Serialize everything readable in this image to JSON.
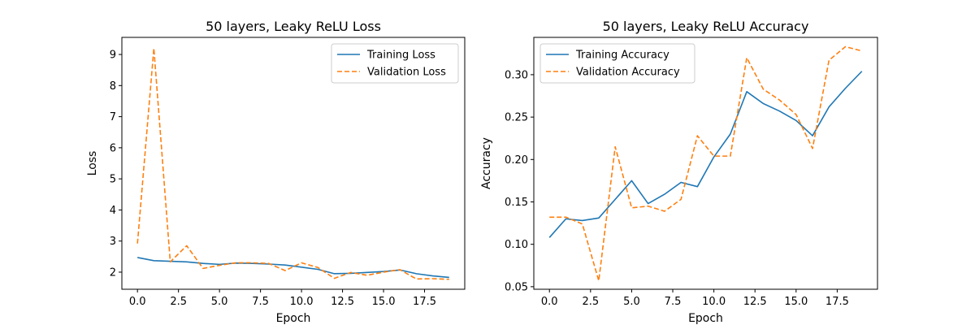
{
  "chart_data": [
    {
      "type": "line",
      "title": "50 layers, Leaky ReLU Loss",
      "xlabel": "Epoch",
      "ylabel": "Loss",
      "xlim": [
        -0.95,
        19.95
      ],
      "ylim": [
        1.45,
        9.55
      ],
      "xticks": [
        0.0,
        2.5,
        5.0,
        7.5,
        10.0,
        12.5,
        15.0,
        17.5
      ],
      "xtick_labels": [
        "0.0",
        "2.5",
        "5.0",
        "7.5",
        "10.0",
        "12.5",
        "15.0",
        "17.5"
      ],
      "yticks": [
        2,
        3,
        4,
        5,
        6,
        7,
        8,
        9
      ],
      "ytick_labels": [
        "2",
        "3",
        "4",
        "5",
        "6",
        "7",
        "8",
        "9"
      ],
      "grid": false,
      "legend_position": "top-right",
      "x": [
        0,
        1,
        2,
        3,
        4,
        5,
        6,
        7,
        8,
        9,
        10,
        11,
        12,
        13,
        14,
        15,
        16,
        17,
        18,
        19
      ],
      "series": [
        {
          "name": "Training Loss",
          "color": "#1f77b4",
          "style": "solid",
          "values": [
            2.47,
            2.37,
            2.35,
            2.33,
            2.28,
            2.25,
            2.29,
            2.28,
            2.26,
            2.23,
            2.16,
            2.09,
            1.95,
            1.96,
            1.99,
            2.02,
            2.07,
            1.95,
            1.88,
            1.83
          ]
        },
        {
          "name": "Validation Loss",
          "color": "#ff7f0e",
          "style": "dashed",
          "values": [
            2.92,
            9.2,
            2.33,
            2.85,
            2.12,
            2.22,
            2.3,
            2.3,
            2.28,
            2.05,
            2.3,
            2.15,
            1.8,
            1.99,
            1.9,
            2.0,
            2.08,
            1.78,
            1.79,
            1.77
          ]
        }
      ]
    },
    {
      "type": "line",
      "title": "50 layers, Leaky ReLU Accuracy",
      "xlabel": "Epoch",
      "ylabel": "Accuracy",
      "xlim": [
        -0.95,
        19.95
      ],
      "ylim": [
        0.047,
        0.344
      ],
      "xticks": [
        0.0,
        2.5,
        5.0,
        7.5,
        10.0,
        12.5,
        15.0,
        17.5
      ],
      "xtick_labels": [
        "0.0",
        "2.5",
        "5.0",
        "7.5",
        "10.0",
        "12.5",
        "15.0",
        "17.5"
      ],
      "yticks": [
        0.05,
        0.1,
        0.15,
        0.2,
        0.25,
        0.3
      ],
      "ytick_labels": [
        "0.05",
        "0.10",
        "0.15",
        "0.20",
        "0.25",
        "0.30"
      ],
      "grid": false,
      "legend_position": "top-left",
      "x": [
        0,
        1,
        2,
        3,
        4,
        5,
        6,
        7,
        8,
        9,
        10,
        11,
        12,
        13,
        14,
        15,
        16,
        17,
        18,
        19
      ],
      "series": [
        {
          "name": "Training Accuracy",
          "color": "#1f77b4",
          "style": "solid",
          "values": [
            0.108,
            0.13,
            0.128,
            0.131,
            0.153,
            0.175,
            0.148,
            0.159,
            0.173,
            0.168,
            0.203,
            0.23,
            0.28,
            0.266,
            0.257,
            0.246,
            0.228,
            0.262,
            0.284,
            0.304
          ]
        },
        {
          "name": "Validation Accuracy",
          "color": "#ff7f0e",
          "style": "dashed",
          "values": [
            0.132,
            0.132,
            0.124,
            0.057,
            0.215,
            0.143,
            0.145,
            0.139,
            0.153,
            0.228,
            0.204,
            0.204,
            0.32,
            0.283,
            0.27,
            0.253,
            0.213,
            0.317,
            0.333,
            0.328
          ]
        }
      ]
    }
  ]
}
